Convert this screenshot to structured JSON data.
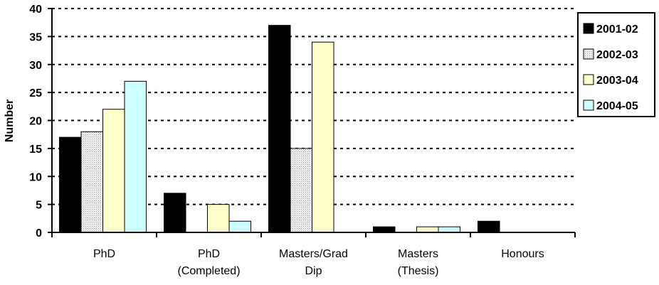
{
  "chart_data": {
    "type": "bar",
    "categories": [
      "PhD",
      "PhD (Completed)",
      "Masters/Grad Dip",
      "Masters (Thesis)",
      "Honours"
    ],
    "category_label_lines": [
      [
        "PhD"
      ],
      [
        "PhD",
        "(Completed)"
      ],
      [
        "Masters/Grad",
        "Dip"
      ],
      [
        "Masters",
        "(Thesis)"
      ],
      [
        "Honours"
      ]
    ],
    "series": [
      {
        "name": "2001-02",
        "color": "#000000",
        "values": [
          17,
          7,
          37,
          1,
          2
        ]
      },
      {
        "name": "2002-03",
        "color": "#e6e6e6",
        "pattern": "dotted",
        "values": [
          18,
          0,
          15,
          0,
          0
        ]
      },
      {
        "name": "2003-04",
        "color": "#ffffcc",
        "values": [
          22,
          5,
          34,
          1,
          0
        ]
      },
      {
        "name": "2004-05",
        "color": "#ccffff",
        "values": [
          27,
          2,
          0,
          1,
          0
        ]
      }
    ],
    "xlabel": "",
    "ylabel": "Number",
    "ylim": [
      0,
      40
    ],
    "yticks": [
      "0",
      "5",
      "10",
      "15",
      "20",
      "25",
      "30",
      "35",
      "40"
    ],
    "grid": "dotted horizontal",
    "legend_position": "right"
  }
}
